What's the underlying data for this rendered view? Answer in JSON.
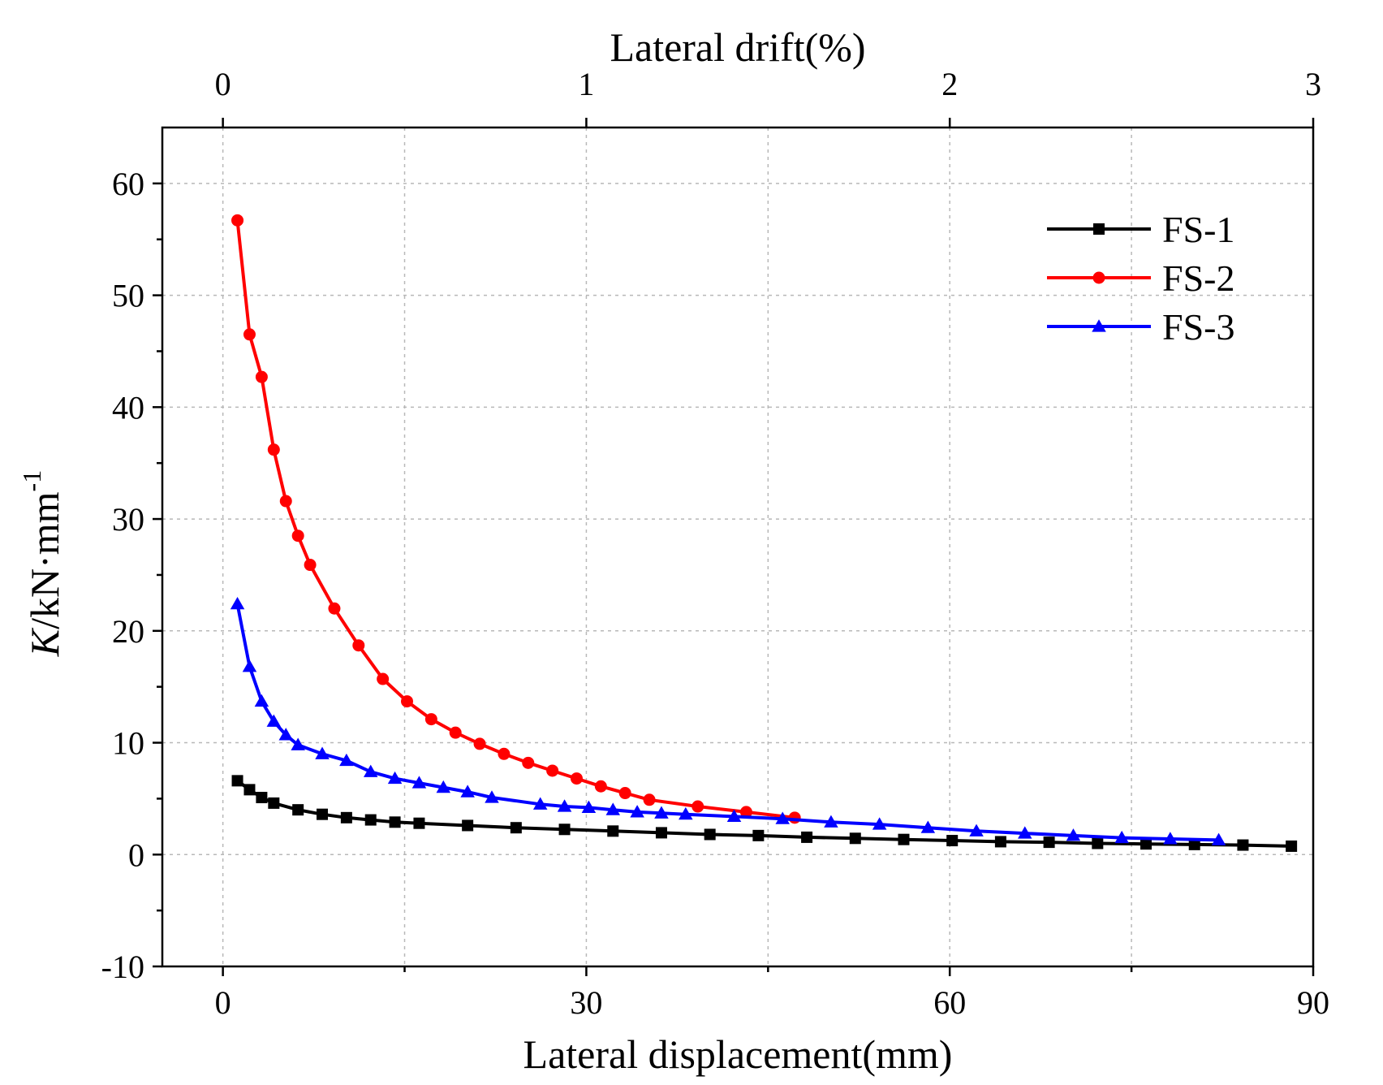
{
  "chart_data": {
    "type": "line",
    "title": "",
    "xlabel": "Lateral displacement(mm)",
    "x2label": "Lateral drift(%)",
    "ylabel_italic": "K",
    "ylabel_rest": "/kN·mm",
    "ylabel_sup": "-1",
    "xlim": [
      -5,
      90
    ],
    "ylim": [
      -10,
      65
    ],
    "x_ticks": [
      0,
      30,
      60,
      90
    ],
    "x_minor_grid": [
      15,
      45,
      75
    ],
    "y_ticks": [
      -10,
      0,
      10,
      20,
      30,
      40,
      50,
      60
    ],
    "x2_ticks": [
      0,
      1,
      2,
      3
    ],
    "x2_scale_mm_per_percent": 30,
    "grid": true,
    "legend_position": "top-right",
    "series": [
      {
        "name": "FS-1",
        "color": "#000000",
        "marker": "square",
        "x": [
          1.2,
          2.2,
          3.2,
          4.2,
          6.2,
          8.2,
          10.2,
          12.2,
          14.2,
          16.2,
          20.2,
          24.2,
          28.2,
          32.2,
          36.2,
          40.2,
          44.2,
          48.2,
          52.2,
          56.2,
          60.2,
          64.2,
          68.2,
          72.2,
          76.2,
          80.2,
          84.2,
          88.2
        ],
        "y": [
          6.6,
          5.8,
          5.1,
          4.6,
          4.0,
          3.6,
          3.3,
          3.1,
          2.9,
          2.8,
          2.6,
          2.4,
          2.25,
          2.1,
          1.95,
          1.8,
          1.7,
          1.55,
          1.45,
          1.35,
          1.25,
          1.15,
          1.1,
          1.0,
          0.95,
          0.9,
          0.85,
          0.75
        ]
      },
      {
        "name": "FS-2",
        "color": "#ff0000",
        "marker": "circle",
        "x": [
          1.2,
          2.2,
          3.2,
          4.2,
          5.2,
          6.2,
          7.2,
          9.2,
          11.2,
          13.2,
          15.2,
          17.2,
          19.2,
          21.2,
          23.2,
          25.2,
          27.2,
          29.2,
          31.2,
          33.2,
          35.2,
          39.2,
          43.2,
          47.2
        ],
        "y": [
          56.7,
          46.5,
          42.7,
          36.2,
          31.6,
          28.5,
          25.9,
          22.0,
          18.7,
          15.7,
          13.7,
          12.1,
          10.9,
          9.9,
          9.0,
          8.2,
          7.5,
          6.8,
          6.1,
          5.5,
          4.9,
          4.3,
          3.8,
          3.3
        ]
      },
      {
        "name": "FS-3",
        "color": "#0000ff",
        "marker": "triangle",
        "x": [
          1.2,
          2.2,
          3.2,
          4.2,
          5.2,
          6.2,
          8.2,
          10.2,
          12.2,
          14.2,
          16.2,
          18.2,
          20.2,
          22.2,
          26.2,
          28.2,
          30.2,
          32.2,
          34.2,
          36.2,
          38.2,
          42.2,
          46.2,
          50.2,
          54.2,
          58.2,
          62.2,
          66.2,
          70.2,
          74.2,
          78.2,
          82.2
        ],
        "y": [
          22.4,
          16.8,
          13.7,
          11.9,
          10.7,
          9.8,
          9.0,
          8.4,
          7.4,
          6.8,
          6.4,
          6.0,
          5.6,
          5.1,
          4.5,
          4.3,
          4.2,
          4.0,
          3.8,
          3.7,
          3.6,
          3.4,
          3.2,
          2.9,
          2.7,
          2.4,
          2.1,
          1.9,
          1.7,
          1.5,
          1.4,
          1.3
        ]
      }
    ]
  }
}
